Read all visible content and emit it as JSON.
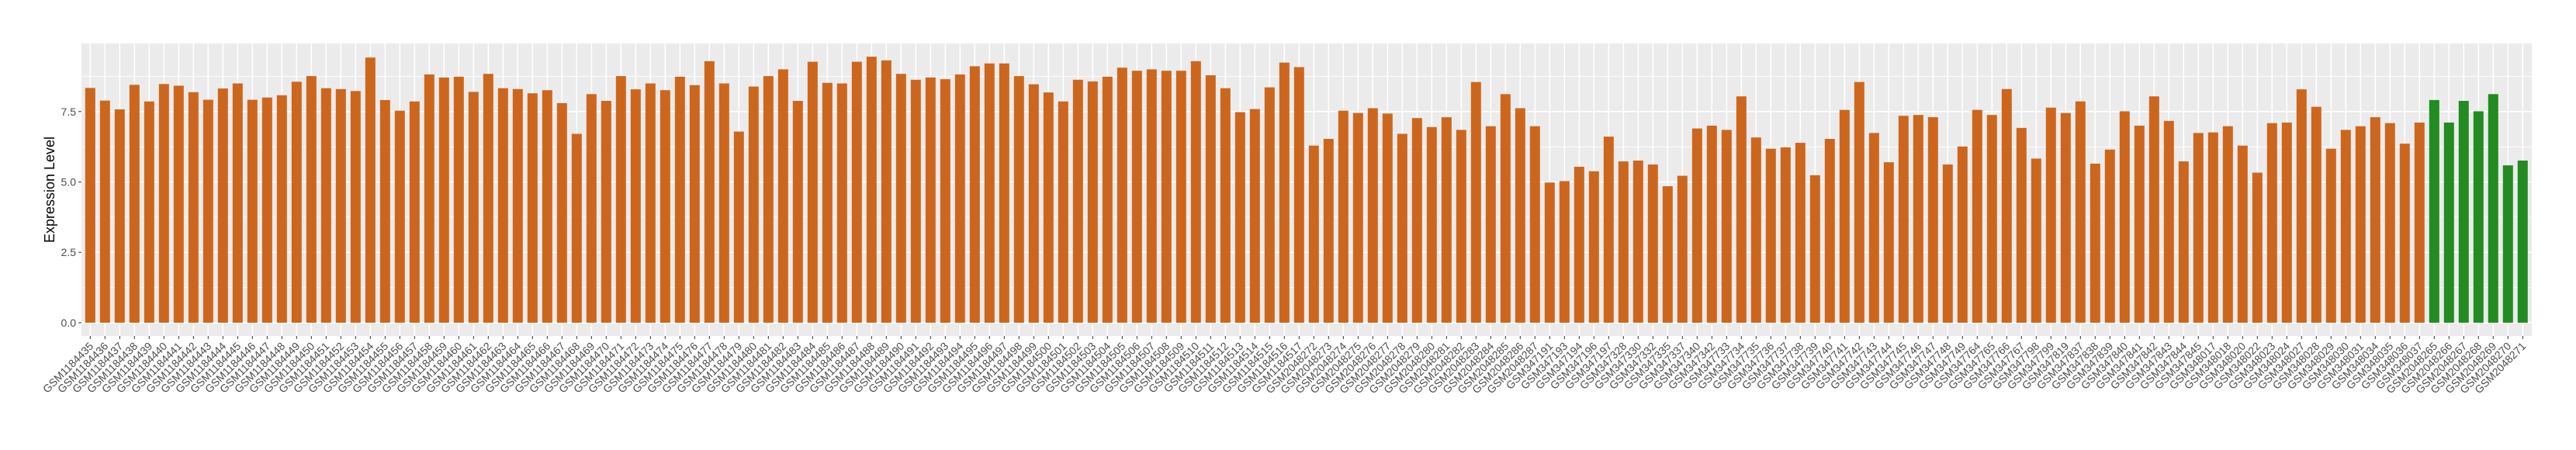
{
  "chart_data": {
    "type": "bar",
    "title": "",
    "xlabel": "",
    "ylabel": "Expression Level",
    "ylim": [
      -0.47,
      9.92
    ],
    "yticks": [
      0,
      2.5,
      5,
      7.5
    ],
    "ytick_labels": [
      "0.0",
      "2.5",
      "5.0",
      "7.5"
    ],
    "grid": true,
    "legend": "none",
    "colors": {
      "panel_background": "#EBEBEB",
      "gridline": "#FFFFFF",
      "default_bar": "#CD661D",
      "highlight_bar": "#228B22"
    },
    "highlighted": [
      "GSM2048265",
      "GSM2048266",
      "GSM2048267",
      "GSM2048268",
      "GSM2048269",
      "GSM2048270",
      "GSM2048271"
    ],
    "categories": [
      "GSM1184435",
      "GSM1184436",
      "GSM1184437",
      "GSM1184438",
      "GSM1184439",
      "GSM1184440",
      "GSM1184441",
      "GSM1184442",
      "GSM1184443",
      "GSM1184444",
      "GSM1184445",
      "GSM1184446",
      "GSM1184447",
      "GSM1184448",
      "GSM1184449",
      "GSM1184450",
      "GSM1184451",
      "GSM1184452",
      "GSM1184453",
      "GSM1184454",
      "GSM1184455",
      "GSM1184456",
      "GSM1184457",
      "GSM1184458",
      "GSM1184459",
      "GSM1184460",
      "GSM1184461",
      "GSM1184462",
      "GSM1184463",
      "GSM1184464",
      "GSM1184465",
      "GSM1184466",
      "GSM1184467",
      "GSM1184468",
      "GSM1184469",
      "GSM1184470",
      "GSM1184471",
      "GSM1184472",
      "GSM1184473",
      "GSM1184474",
      "GSM1184475",
      "GSM1184476",
      "GSM1184477",
      "GSM1184478",
      "GSM1184479",
      "GSM1184480",
      "GSM1184481",
      "GSM1184482",
      "GSM1184483",
      "GSM1184484",
      "GSM1184485",
      "GSM1184486",
      "GSM1184487",
      "GSM1184488",
      "GSM1184489",
      "GSM1184490",
      "GSM1184491",
      "GSM1184492",
      "GSM1184493",
      "GSM1184494",
      "GSM1184495",
      "GSM1184496",
      "GSM1184497",
      "GSM1184498",
      "GSM1184499",
      "GSM1184500",
      "GSM1184501",
      "GSM1184502",
      "GSM1184503",
      "GSM1184504",
      "GSM1184505",
      "GSM1184506",
      "GSM1184507",
      "GSM1184508",
      "GSM1184509",
      "GSM1184510",
      "GSM1184511",
      "GSM1184512",
      "GSM1184513",
      "GSM1184514",
      "GSM1184515",
      "GSM1184516",
      "GSM1184517",
      "GSM2048272",
      "GSM2048273",
      "GSM2048274",
      "GSM2048275",
      "GSM2048276",
      "GSM2048277",
      "GSM2048278",
      "GSM2048279",
      "GSM2048280",
      "GSM2048281",
      "GSM2048282",
      "GSM2048283",
      "GSM2048284",
      "GSM2048285",
      "GSM2048286",
      "GSM2048287",
      "GSM347191",
      "GSM347193",
      "GSM347194",
      "GSM347196",
      "GSM347197",
      "GSM347328",
      "GSM347330",
      "GSM347332",
      "GSM347335",
      "GSM347337",
      "GSM347340",
      "GSM347342",
      "GSM347733",
      "GSM347734",
      "GSM347735",
      "GSM347736",
      "GSM347737",
      "GSM347738",
      "GSM347739",
      "GSM347740",
      "GSM347741",
      "GSM347742",
      "GSM347743",
      "GSM347744",
      "GSM347745",
      "GSM347746",
      "GSM347747",
      "GSM347748",
      "GSM347749",
      "GSM347764",
      "GSM347765",
      "GSM347766",
      "GSM347767",
      "GSM347798",
      "GSM347799",
      "GSM347819",
      "GSM347837",
      "GSM347838",
      "GSM347839",
      "GSM347840",
      "GSM347841",
      "GSM347842",
      "GSM347843",
      "GSM347844",
      "GSM347845",
      "GSM348017",
      "GSM348018",
      "GSM348020",
      "GSM348022",
      "GSM348023",
      "GSM348024",
      "GSM348027",
      "GSM348028",
      "GSM348029",
      "GSM348030",
      "GSM348031",
      "GSM348034",
      "GSM348035",
      "GSM348036",
      "GSM348037",
      "GSM2048265",
      "GSM2048266",
      "GSM2048267",
      "GSM2048268",
      "GSM2048269",
      "GSM2048270",
      "GSM2048271"
    ],
    "values": [
      8.34,
      7.89,
      7.58,
      8.45,
      7.86,
      8.48,
      8.42,
      8.19,
      7.92,
      8.32,
      8.5,
      7.92,
      8.0,
      8.08,
      8.56,
      8.76,
      8.33,
      8.3,
      8.23,
      9.42,
      7.91,
      7.53,
      7.86,
      8.82,
      8.71,
      8.74,
      8.2,
      8.84,
      8.33,
      8.3,
      8.15,
      8.26,
      7.8,
      6.71,
      8.12,
      7.88,
      8.76,
      8.29,
      8.5,
      8.26,
      8.74,
      8.44,
      9.29,
      8.5,
      6.79,
      8.39,
      8.76,
      9.0,
      7.88,
      9.27,
      8.52,
      8.5,
      9.27,
      9.45,
      9.32,
      8.84,
      8.63,
      8.71,
      8.65,
      8.82,
      9.11,
      9.21,
      9.21,
      8.76,
      8.47,
      8.18,
      7.86,
      8.63,
      8.57,
      8.74,
      9.06,
      8.95,
      9.0,
      8.95,
      8.95,
      9.29,
      8.79,
      8.33,
      7.48,
      7.59,
      8.36,
      9.24,
      9.08,
      6.29,
      6.53,
      7.53,
      7.45,
      7.62,
      7.43,
      6.71,
      7.27,
      6.95,
      7.3,
      6.85,
      8.55,
      6.98,
      8.12,
      7.62,
      6.98,
      4.98,
      5.03,
      5.54,
      5.38,
      6.61,
      5.73,
      5.76,
      5.62,
      4.85,
      5.22,
      6.9,
      7.0,
      6.85,
      8.04,
      6.58,
      6.18,
      6.23,
      6.39,
      5.24,
      6.53,
      7.56,
      8.55,
      6.74,
      5.7,
      7.35,
      7.38,
      7.3,
      5.62,
      6.26,
      7.56,
      7.38,
      8.3,
      6.92,
      5.83,
      7.64,
      7.45,
      7.86,
      5.65,
      6.15,
      7.51,
      7.0,
      8.04,
      7.17,
      5.73,
      6.74,
      6.76,
      6.98,
      6.29,
      5.33,
      7.09,
      7.11,
      8.29,
      7.67,
      6.18,
      6.85,
      6.98,
      7.3,
      7.09,
      6.36,
      7.11,
      7.91,
      7.11,
      7.88,
      7.51,
      8.12,
      5.59,
      5.76
    ]
  }
}
